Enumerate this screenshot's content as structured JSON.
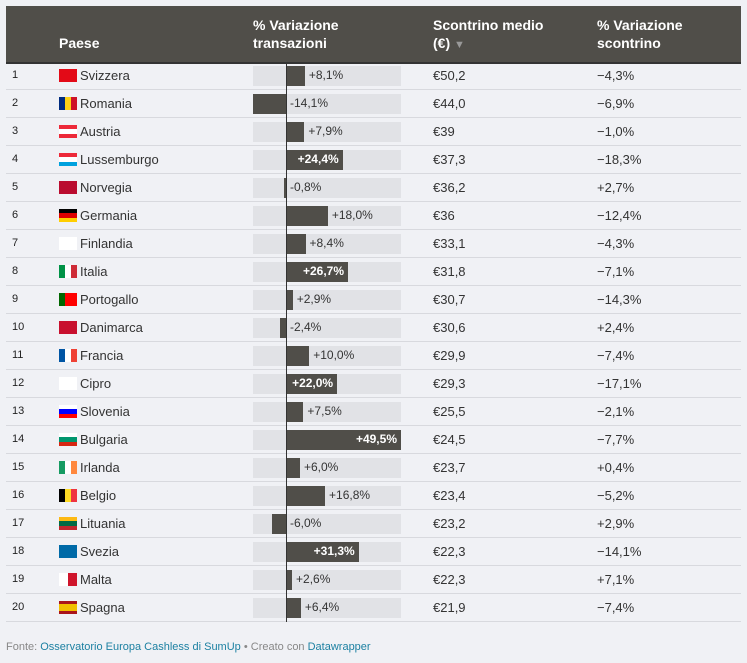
{
  "header": {
    "paese": "Paese",
    "var_trans_1": "% Variazione",
    "var_trans_2": "transazioni",
    "scontrino_1": "Scontrino medio",
    "scontrino_2": "(€)",
    "sort_icon": "▼",
    "var_sc_1": "% Variazione",
    "var_sc_2": "scontrino"
  },
  "chart_data": {
    "type": "table",
    "columns": [
      "",
      "Paese",
      "% Variazione transazioni",
      "Scontrino medio (€)",
      "% Variazione scontrino"
    ],
    "bar_range": [
      -14.1,
      49.5
    ],
    "rows": [
      {
        "rank": "1",
        "country": "Svizzera",
        "flag": [
          "#e30a17"
        ],
        "var_trans": 8.1,
        "var_trans_label": "+8,1%",
        "scontrino": "€50,2",
        "var_sc": "−4,3%"
      },
      {
        "rank": "2",
        "country": "Romania",
        "flag": [
          "#002b7f",
          "#fcd116",
          "#ce1126"
        ],
        "vertical": true,
        "var_trans": -14.1,
        "var_trans_label": "-14,1%",
        "scontrino": "€44,0",
        "var_sc": "−6,9%"
      },
      {
        "rank": "3",
        "country": "Austria",
        "flag": [
          "#ed2939",
          "#ffffff",
          "#ed2939"
        ],
        "var_trans": 7.9,
        "var_trans_label": "+7,9%",
        "scontrino": "€39",
        "var_sc": "−1,0%"
      },
      {
        "rank": "4",
        "country": "Lussemburgo",
        "flag": [
          "#ed2939",
          "#ffffff",
          "#00a1de"
        ],
        "var_trans": 24.4,
        "var_trans_label": "+24,4%",
        "scontrino": "€37,3",
        "var_sc": "−18,3%"
      },
      {
        "rank": "5",
        "country": "Norvegia",
        "flag": [
          "#ba0c2f"
        ],
        "var_trans": -0.8,
        "var_trans_label": "-0,8%",
        "scontrino": "€36,2",
        "var_sc": "+2,7%"
      },
      {
        "rank": "6",
        "country": "Germania",
        "flag": [
          "#000000",
          "#dd0000",
          "#ffce00"
        ],
        "var_trans": 18.0,
        "var_trans_label": "+18,0%",
        "scontrino": "€36",
        "var_sc": "−12,4%"
      },
      {
        "rank": "7",
        "country": "Finlandia",
        "flag": [
          "#ffffff"
        ],
        "var_trans": 8.4,
        "var_trans_label": "+8,4%",
        "scontrino": "€33,1",
        "var_sc": "−4,3%"
      },
      {
        "rank": "8",
        "country": "Italia",
        "flag": [
          "#009246",
          "#ffffff",
          "#ce2b37"
        ],
        "vertical": true,
        "var_trans": 26.7,
        "var_trans_label": "+26,7%",
        "scontrino": "€31,8",
        "var_sc": "−7,1%"
      },
      {
        "rank": "9",
        "country": "Portogallo",
        "flag": [
          "#006600",
          "#ff0000",
          "#ff0000"
        ],
        "vertical": true,
        "var_trans": 2.9,
        "var_trans_label": "+2,9%",
        "scontrino": "€30,7",
        "var_sc": "−14,3%"
      },
      {
        "rank": "10",
        "country": "Danimarca",
        "flag": [
          "#c8102e"
        ],
        "var_trans": -2.4,
        "var_trans_label": "-2,4%",
        "scontrino": "€30,6",
        "var_sc": "+2,4%"
      },
      {
        "rank": "11",
        "country": "Francia",
        "flag": [
          "#0055a4",
          "#ffffff",
          "#ef4135"
        ],
        "vertical": true,
        "var_trans": 10.0,
        "var_trans_label": "+10,0%",
        "scontrino": "€29,9",
        "var_sc": "−7,4%"
      },
      {
        "rank": "12",
        "country": "Cipro",
        "flag": [
          "#ffffff"
        ],
        "var_trans": 22.0,
        "var_trans_label": "+22,0%",
        "scontrino": "€29,3",
        "var_sc": "−17,1%"
      },
      {
        "rank": "13",
        "country": "Slovenia",
        "flag": [
          "#ffffff",
          "#0000ff",
          "#ff0000"
        ],
        "var_trans": 7.5,
        "var_trans_label": "+7,5%",
        "scontrino": "€25,5",
        "var_sc": "−2,1%"
      },
      {
        "rank": "14",
        "country": "Bulgaria",
        "flag": [
          "#ffffff",
          "#00966e",
          "#d62612"
        ],
        "var_trans": 49.5,
        "var_trans_label": "+49,5%",
        "scontrino": "€24,5",
        "var_sc": "−7,7%"
      },
      {
        "rank": "15",
        "country": "Irlanda",
        "flag": [
          "#169b62",
          "#ffffff",
          "#ff883e"
        ],
        "vertical": true,
        "var_trans": 6.0,
        "var_trans_label": "+6,0%",
        "scontrino": "€23,7",
        "var_sc": "+0,4%"
      },
      {
        "rank": "16",
        "country": "Belgio",
        "flag": [
          "#000000",
          "#fdda24",
          "#ef3340"
        ],
        "vertical": true,
        "var_trans": 16.8,
        "var_trans_label": "+16,8%",
        "scontrino": "€23,4",
        "var_sc": "−5,2%"
      },
      {
        "rank": "17",
        "country": "Lituania",
        "flag": [
          "#fdb913",
          "#006a44",
          "#c1272d"
        ],
        "var_trans": -6.0,
        "var_trans_label": "-6,0%",
        "scontrino": "€23,2",
        "var_sc": "+2,9%"
      },
      {
        "rank": "18",
        "country": "Svezia",
        "flag": [
          "#006aa7"
        ],
        "var_trans": 31.3,
        "var_trans_label": "+31,3%",
        "scontrino": "€22,3",
        "var_sc": "−14,1%"
      },
      {
        "rank": "19",
        "country": "Malta",
        "flag": [
          "#ffffff",
          "#cf142b"
        ],
        "vertical": true,
        "var_trans": 2.6,
        "var_trans_label": "+2,6%",
        "scontrino": "€22,3",
        "var_sc": "+7,1%"
      },
      {
        "rank": "20",
        "country": "Spagna",
        "flag": [
          "#aa151b",
          "#f1bf00",
          "#f1bf00",
          "#aa151b"
        ],
        "var_trans": 6.4,
        "var_trans_label": "+6,4%",
        "scontrino": "€21,9",
        "var_sc": "−7,4%"
      }
    ]
  },
  "footer": {
    "prefix": "Fonte: ",
    "source": "Osservatorio Europa Cashless di SumUp",
    "sep": " • Creato con ",
    "tool": "Datawrapper"
  }
}
